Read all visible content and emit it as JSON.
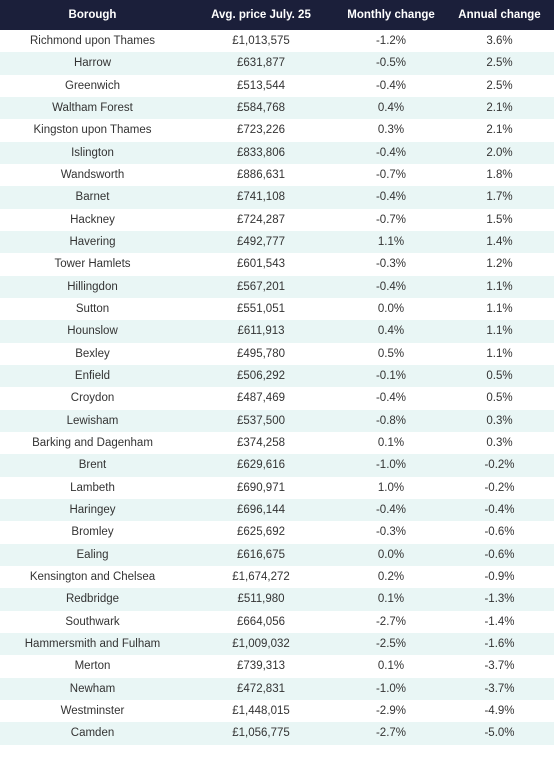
{
  "table": {
    "headers": [
      "Borough",
      "Avg. price July. 25",
      "Monthly change",
      "Annual change"
    ],
    "rows": [
      [
        "Richmond upon Thames",
        "£1,013,575",
        "-1.2%",
        "3.6%"
      ],
      [
        "Harrow",
        "£631,877",
        "-0.5%",
        "2.5%"
      ],
      [
        "Greenwich",
        "£513,544",
        "-0.4%",
        "2.5%"
      ],
      [
        "Waltham Forest",
        "£584,768",
        "0.4%",
        "2.1%"
      ],
      [
        "Kingston upon Thames",
        "£723,226",
        "0.3%",
        "2.1%"
      ],
      [
        "Islington",
        "£833,806",
        "-0.4%",
        "2.0%"
      ],
      [
        "Wandsworth",
        "£886,631",
        "-0.7%",
        "1.8%"
      ],
      [
        "Barnet",
        "£741,108",
        "-0.4%",
        "1.7%"
      ],
      [
        "Hackney",
        "£724,287",
        "-0.7%",
        "1.5%"
      ],
      [
        "Havering",
        "£492,777",
        "1.1%",
        "1.4%"
      ],
      [
        "Tower Hamlets",
        "£601,543",
        "-0.3%",
        "1.2%"
      ],
      [
        "Hillingdon",
        "£567,201",
        "-0.4%",
        "1.1%"
      ],
      [
        "Sutton",
        "£551,051",
        "0.0%",
        "1.1%"
      ],
      [
        "Hounslow",
        "£611,913",
        "0.4%",
        "1.1%"
      ],
      [
        "Bexley",
        "£495,780",
        "0.5%",
        "1.1%"
      ],
      [
        "Enfield",
        "£506,292",
        "-0.1%",
        "0.5%"
      ],
      [
        "Croydon",
        "£487,469",
        "-0.4%",
        "0.5%"
      ],
      [
        "Lewisham",
        "£537,500",
        "-0.8%",
        "0.3%"
      ],
      [
        "Barking and Dagenham",
        "£374,258",
        "0.1%",
        "0.3%"
      ],
      [
        "Brent",
        "£629,616",
        "-1.0%",
        "-0.2%"
      ],
      [
        "Lambeth",
        "£690,971",
        "1.0%",
        "-0.2%"
      ],
      [
        "Haringey",
        "£696,144",
        "-0.4%",
        "-0.4%"
      ],
      [
        "Bromley",
        "£625,692",
        "-0.3%",
        "-0.6%"
      ],
      [
        "Ealing",
        "£616,675",
        "0.0%",
        "-0.6%"
      ],
      [
        "Kensington and Chelsea",
        "£1,674,272",
        "0.2%",
        "-0.9%"
      ],
      [
        "Redbridge",
        "£511,980",
        "0.1%",
        "-1.3%"
      ],
      [
        "Southwark",
        "£664,056",
        "-2.7%",
        "-1.4%"
      ],
      [
        "Hammersmith and Fulham",
        "£1,009,032",
        "-2.5%",
        "-1.6%"
      ],
      [
        "Merton",
        "£739,313",
        "0.1%",
        "-3.7%"
      ],
      [
        "Newham",
        "£472,831",
        "-1.0%",
        "-3.7%"
      ],
      [
        "Westminster",
        "£1,448,015",
        "-2.9%",
        "-4.9%"
      ],
      [
        "Camden",
        "£1,056,775",
        "-2.7%",
        "-5.0%"
      ]
    ]
  },
  "colors": {
    "header_bg": "#1b1f3a",
    "header_text": "#ffffff",
    "row_alt_bg": "#e9f6f5",
    "row_bg": "#ffffff",
    "cell_text": "#333333"
  }
}
